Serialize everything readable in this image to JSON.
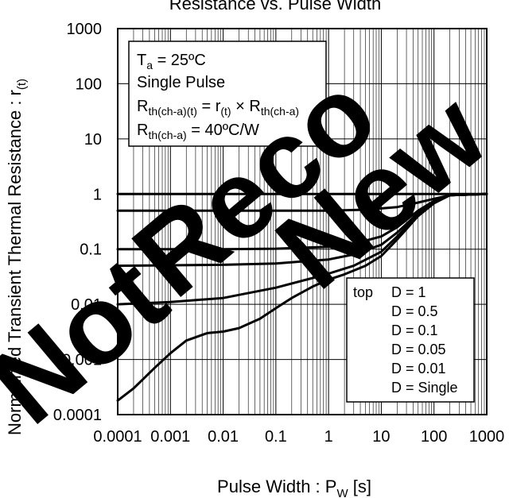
{
  "chart_data": {
    "type": "line",
    "title": "Resistance vs. Pulse Width",
    "xlabel_main": "Pulse Width : P",
    "xlabel_sub": "W",
    "xlabel_suffix": " [s]",
    "ylabel_main": "Normalized Transient Thermal Resistance : r",
    "ylabel_sub": "(t)",
    "x_scale": "log",
    "y_scale": "log",
    "xlim": [
      0.0001,
      1000
    ],
    "ylim": [
      0.0001,
      1000
    ],
    "x_ticks": [
      "0.0001",
      "0.001",
      "0.01",
      "0.1",
      "1",
      "10",
      "100",
      "1000"
    ],
    "y_ticks": [
      "1000",
      "100",
      "10",
      "1",
      "0.1",
      "0.01",
      "0.001",
      "0.0001"
    ],
    "grid": true,
    "annotation": {
      "line1": "T",
      "line1_sub": "a",
      "line1_rest": " = 25ºC",
      "line2": "Single Pulse",
      "line3_a": "R",
      "line3_a_sub": "th(ch-a)(t)",
      "line3_b": " = r",
      "line3_b_sub": "(t)",
      "line3_c": " × R",
      "line3_c_sub": "th(ch-a)",
      "line4_a": "R",
      "line4_a_sub": "th(ch-a)",
      "line4_b": " = 40ºC/W"
    },
    "legend": {
      "placement": "bottom-right",
      "prefix": "top",
      "entries": [
        "D = 1",
        "D = 0.5",
        "D = 0.1",
        "D = 0.05",
        "D = 0.01",
        "D = Single"
      ]
    },
    "series": [
      {
        "name": "D = 1",
        "x": [
          0.0001,
          1000
        ],
        "y": [
          1,
          1
        ]
      },
      {
        "name": "D = 0.5",
        "x": [
          0.0001,
          0.01,
          1,
          5,
          20,
          50,
          100,
          200,
          1000
        ],
        "y": [
          0.5,
          0.5,
          0.5,
          0.52,
          0.58,
          0.7,
          0.82,
          0.95,
          1
        ]
      },
      {
        "name": "D = 0.1",
        "x": [
          0.0001,
          0.01,
          0.1,
          1,
          3,
          10,
          20,
          50,
          100,
          200,
          1000
        ],
        "y": [
          0.1,
          0.1,
          0.102,
          0.11,
          0.125,
          0.17,
          0.25,
          0.5,
          0.75,
          0.95,
          1
        ]
      },
      {
        "name": "D = 0.05",
        "x": [
          0.0001,
          0.01,
          0.1,
          1,
          3,
          10,
          20,
          50,
          100,
          200,
          1000
        ],
        "y": [
          0.05,
          0.052,
          0.055,
          0.065,
          0.08,
          0.12,
          0.2,
          0.45,
          0.72,
          0.95,
          1
        ]
      },
      {
        "name": "D = 0.01",
        "x": [
          0.0001,
          0.001,
          0.01,
          0.1,
          0.5,
          1,
          3,
          10,
          20,
          50,
          100,
          200,
          1000
        ],
        "y": [
          0.01,
          0.011,
          0.013,
          0.02,
          0.03,
          0.036,
          0.05,
          0.09,
          0.17,
          0.42,
          0.7,
          0.95,
          1
        ]
      },
      {
        "name": "D = Single",
        "x": [
          0.0001,
          0.0002,
          0.0005,
          0.001,
          0.002,
          0.005,
          0.01,
          0.02,
          0.05,
          0.1,
          0.2,
          0.5,
          1,
          2,
          5,
          10,
          20,
          50,
          100,
          200,
          1000
        ],
        "y": [
          0.00018,
          0.0003,
          0.0007,
          0.0013,
          0.0022,
          0.003,
          0.0032,
          0.0037,
          0.0055,
          0.0085,
          0.013,
          0.021,
          0.028,
          0.035,
          0.05,
          0.075,
          0.15,
          0.4,
          0.68,
          0.95,
          1
        ]
      }
    ],
    "watermark": "Not Recommended for New Designs",
    "watermark_words": [
      "Not",
      "Reco",
      "New"
    ]
  }
}
